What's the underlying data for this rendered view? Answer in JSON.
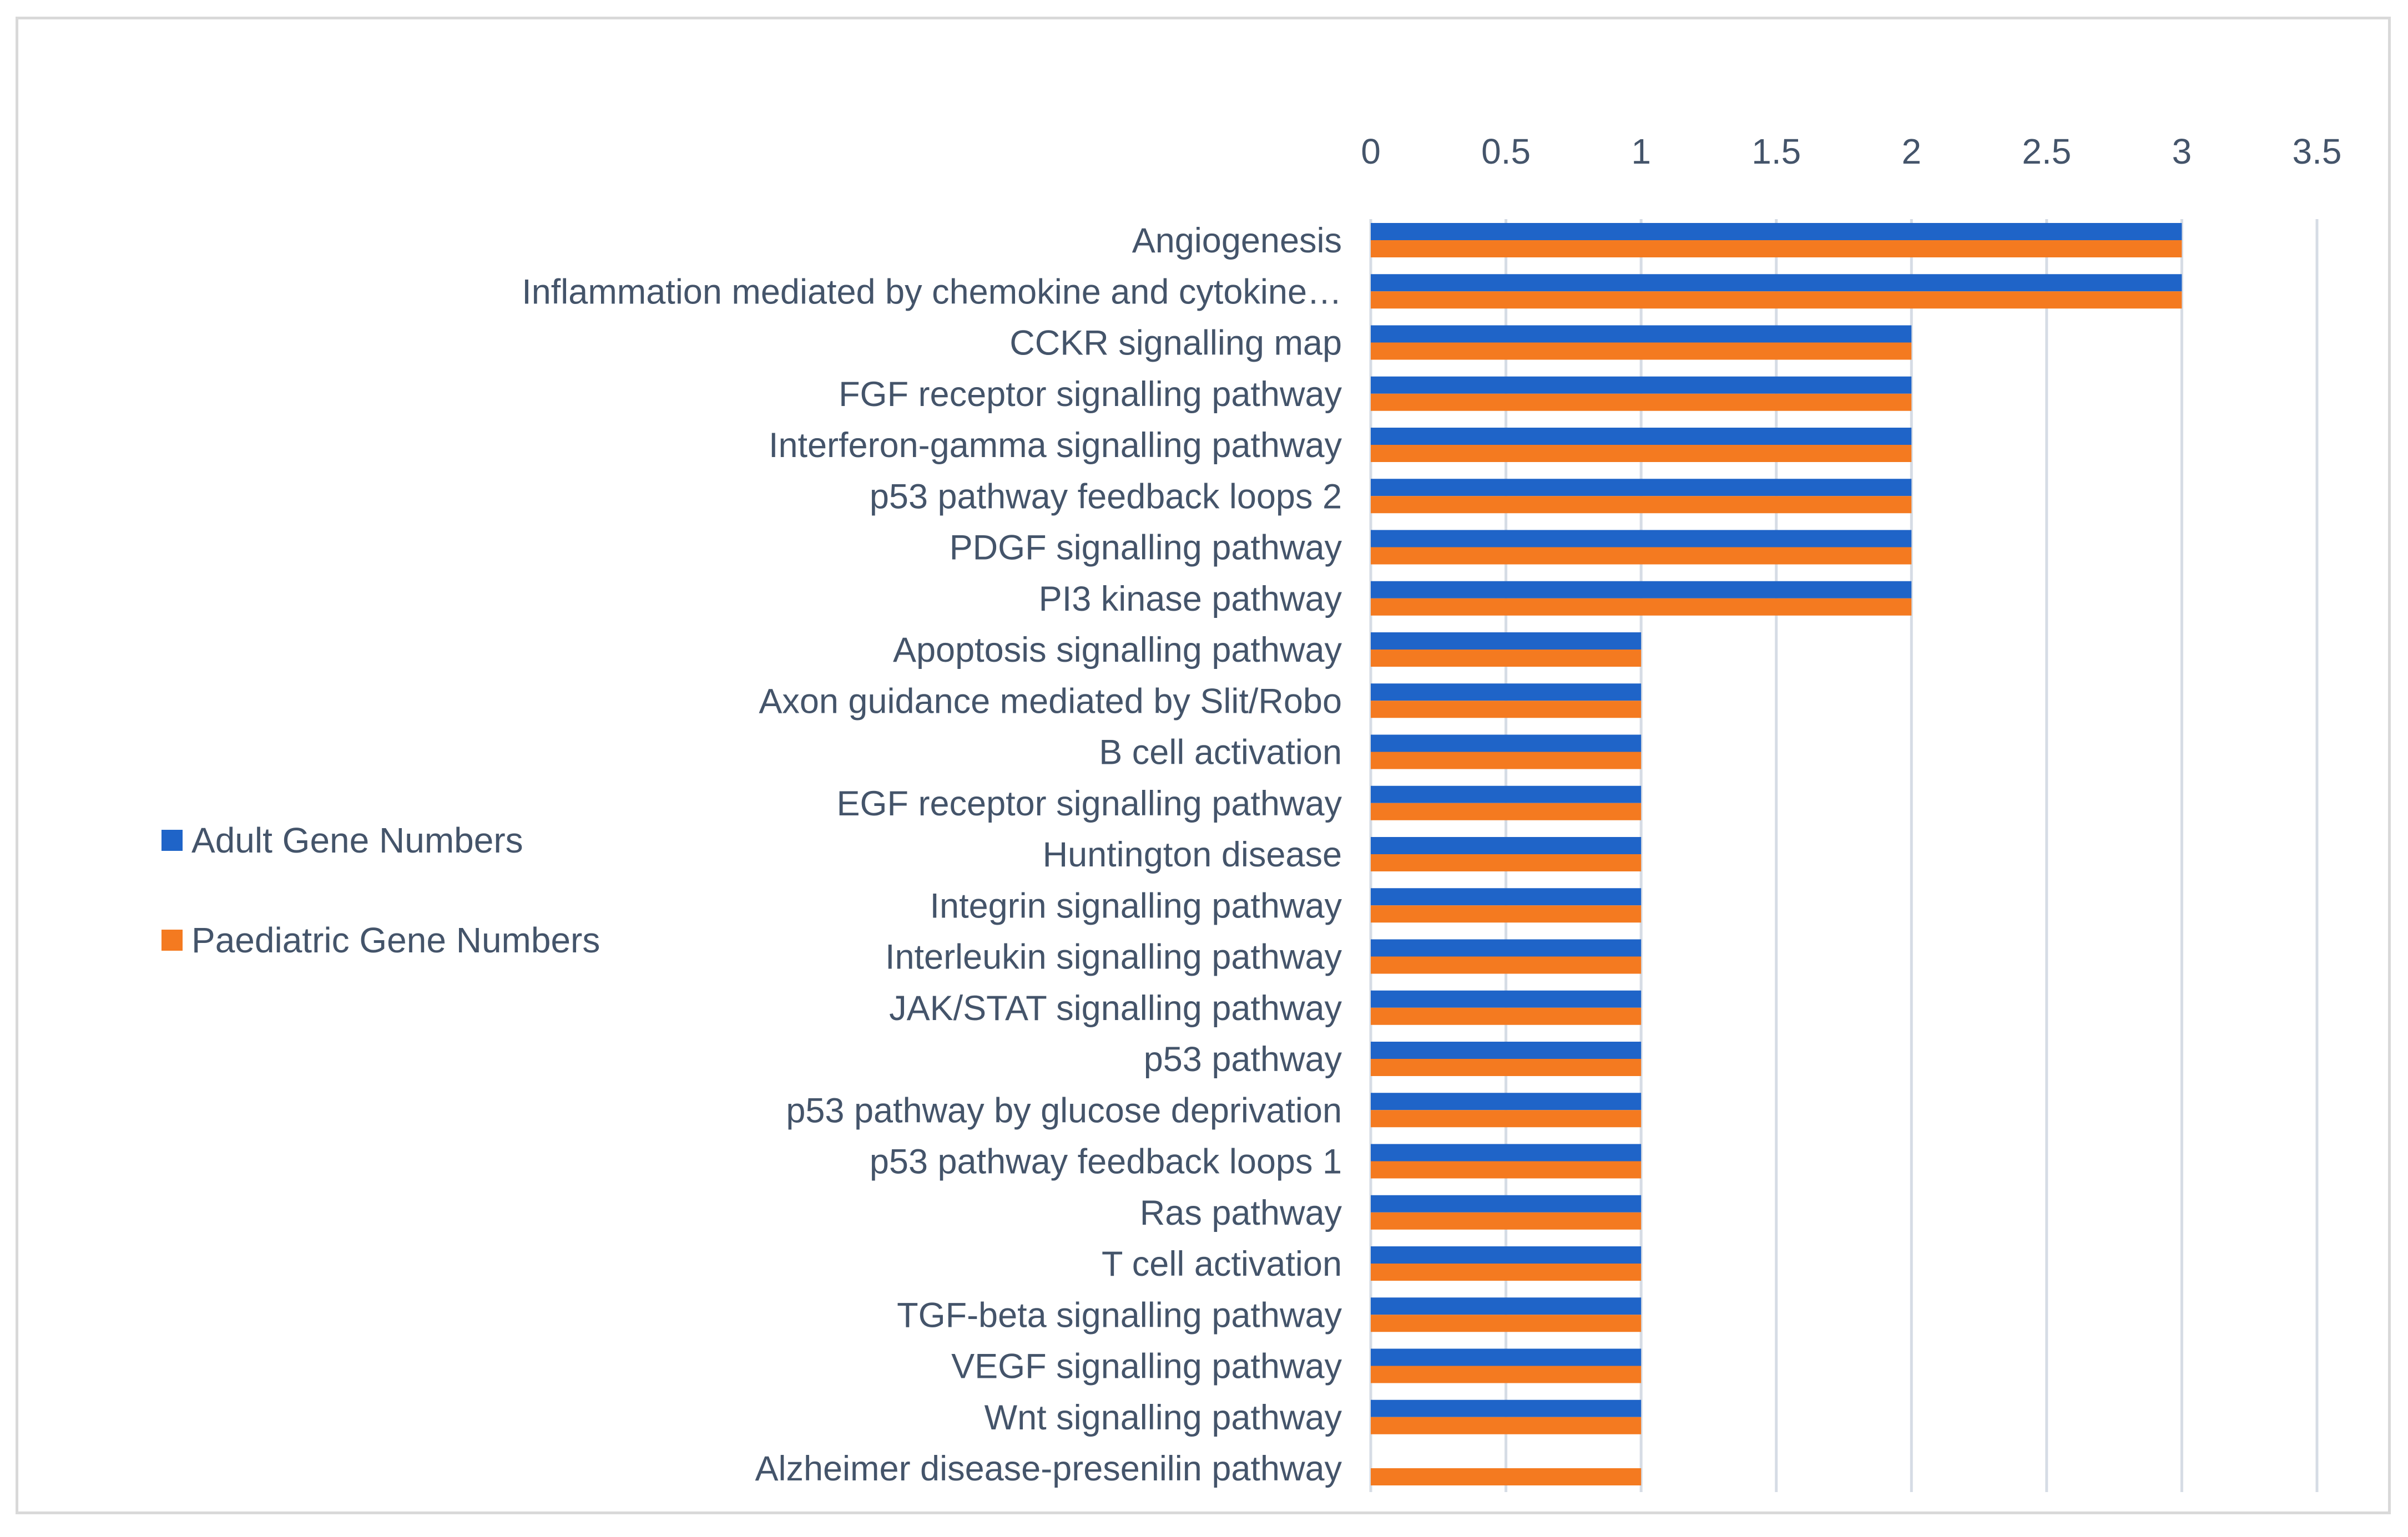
{
  "chart_data": {
    "type": "bar",
    "orientation": "horizontal",
    "title": "",
    "xlabel": "",
    "ylabel": "",
    "xlim": [
      0,
      3.5
    ],
    "x_ticks": [
      "0",
      "0.5",
      "1",
      "1.5",
      "2",
      "2.5",
      "3",
      "3.5"
    ],
    "x_axis_position": "top",
    "grid": true,
    "legend_position": "left",
    "categories": [
      "Angiogenesis",
      "Inflammation mediated by chemokine and cytokine…",
      "CCKR signalling map",
      "FGF receptor signalling pathway",
      "Interferon-gamma signalling pathway",
      "p53 pathway feedback loops 2",
      "PDGF signalling pathway",
      "PI3 kinase pathway",
      "Apoptosis signalling pathway",
      "Axon guidance mediated by Slit/Robo",
      "B cell activation",
      "EGF receptor signalling pathway",
      "Huntington disease",
      "Integrin signalling pathway",
      "Interleukin signalling pathway",
      "JAK/STAT signalling pathway",
      "p53 pathway",
      "p53 pathway by glucose deprivation",
      "p53 pathway feedback loops 1",
      "Ras pathway",
      "T cell activation",
      "TGF-beta signalling pathway",
      "VEGF signalling pathway",
      "Wnt signalling pathway",
      "Alzheimer disease-presenilin pathway"
    ],
    "series": [
      {
        "name": "Adult Gene Numbers",
        "color": "#1f64c8",
        "values": [
          3,
          3,
          2,
          2,
          2,
          2,
          2,
          2,
          1,
          1,
          1,
          1,
          1,
          1,
          1,
          1,
          1,
          1,
          1,
          1,
          1,
          1,
          1,
          1,
          0
        ]
      },
      {
        "name": "Paediatric Gene Numbers",
        "color": "#f47a20",
        "values": [
          3,
          3,
          2,
          2,
          2,
          2,
          2,
          2,
          1,
          1,
          1,
          1,
          1,
          1,
          1,
          1,
          1,
          1,
          1,
          1,
          1,
          1,
          1,
          1,
          1
        ]
      }
    ]
  },
  "colors": {
    "gridline": "#d6dce5",
    "text": "#44546a",
    "frame": "#d9d9d9"
  }
}
